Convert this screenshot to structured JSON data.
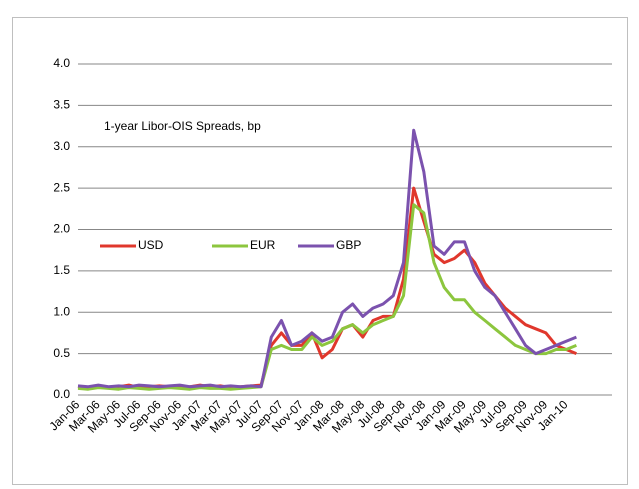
{
  "chart_data": {
    "type": "line",
    "annotation": "1-year Libor-OIS Spreads, bp",
    "categories": [
      "Jan-06",
      null,
      "Mar-06",
      null,
      "May-06",
      null,
      "Jul-06",
      null,
      "Sep-06",
      null,
      "Nov-06",
      null,
      "Jan-07",
      null,
      "Mar-07",
      null,
      "May-07",
      null,
      "Jul-07",
      null,
      "Sep-07",
      null,
      "Nov-07",
      null,
      "Jan-08",
      null,
      "Mar-08",
      null,
      "May-08",
      null,
      "Jul-08",
      null,
      "Sep-08",
      null,
      "Nov-08",
      null,
      "Jan-09",
      null,
      "Mar-09",
      null,
      "May-09",
      null,
      "Jul-09",
      null,
      "Sep-09",
      null,
      "Nov-09",
      null,
      "Jan-10",
      null
    ],
    "series": [
      {
        "name": "USD",
        "color": "#e0372c",
        "values": [
          0.1,
          0.08,
          0.11,
          0.09,
          0.1,
          0.12,
          0.09,
          0.1,
          0.11,
          0.1,
          0.09,
          0.1,
          0.12,
          0.1,
          0.11,
          0.09,
          0.1,
          0.11,
          0.12,
          0.6,
          0.75,
          0.6,
          0.6,
          0.75,
          0.45,
          0.55,
          0.8,
          0.85,
          0.7,
          0.9,
          0.95,
          0.95,
          1.4,
          2.5,
          2.1,
          1.7,
          1.6,
          1.65,
          1.75,
          1.6,
          1.35,
          1.2,
          1.05,
          0.95,
          0.85,
          0.8,
          0.75,
          0.6,
          0.55,
          0.5
        ]
      },
      {
        "name": "EUR",
        "color": "#8cc63e",
        "values": [
          0.08,
          0.07,
          0.09,
          0.08,
          0.07,
          0.09,
          0.08,
          0.07,
          0.08,
          0.09,
          0.08,
          0.07,
          0.09,
          0.08,
          0.08,
          0.07,
          0.08,
          0.09,
          0.1,
          0.55,
          0.6,
          0.55,
          0.55,
          0.7,
          0.6,
          0.65,
          0.8,
          0.85,
          0.75,
          0.85,
          0.9,
          0.95,
          1.2,
          2.3,
          2.2,
          1.6,
          1.3,
          1.15,
          1.15,
          1.0,
          0.9,
          0.8,
          0.7,
          0.6,
          0.55,
          0.5,
          0.5,
          0.55,
          0.55,
          0.6
        ]
      },
      {
        "name": "GBP",
        "color": "#7b52ae",
        "values": [
          0.11,
          0.1,
          0.12,
          0.1,
          0.11,
          0.1,
          0.12,
          0.11,
          0.1,
          0.11,
          0.12,
          0.1,
          0.11,
          0.12,
          0.1,
          0.11,
          0.1,
          0.11,
          0.1,
          0.7,
          0.9,
          0.6,
          0.65,
          0.75,
          0.65,
          0.7,
          1.0,
          1.1,
          0.95,
          1.05,
          1.1,
          1.2,
          1.6,
          3.2,
          2.7,
          1.8,
          1.7,
          1.85,
          1.85,
          1.5,
          1.3,
          1.2,
          1.0,
          0.8,
          0.6,
          0.5,
          0.55,
          0.6,
          0.65,
          0.7
        ]
      }
    ],
    "ylim": [
      0,
      4
    ],
    "yticks": [
      {
        "value": 0,
        "label": "0.0"
      },
      {
        "value": 0.5,
        "label": "0.5"
      },
      {
        "value": 1,
        "label": "1.0"
      },
      {
        "value": 1.5,
        "label": "1.5"
      },
      {
        "value": 2,
        "label": "2.0"
      },
      {
        "value": 2.5,
        "label": "2.5"
      },
      {
        "value": 3,
        "label": "3.0"
      },
      {
        "value": 3.5,
        "label": "3.5"
      },
      {
        "value": 4,
        "label": "4.0"
      }
    ],
    "grid": true
  }
}
